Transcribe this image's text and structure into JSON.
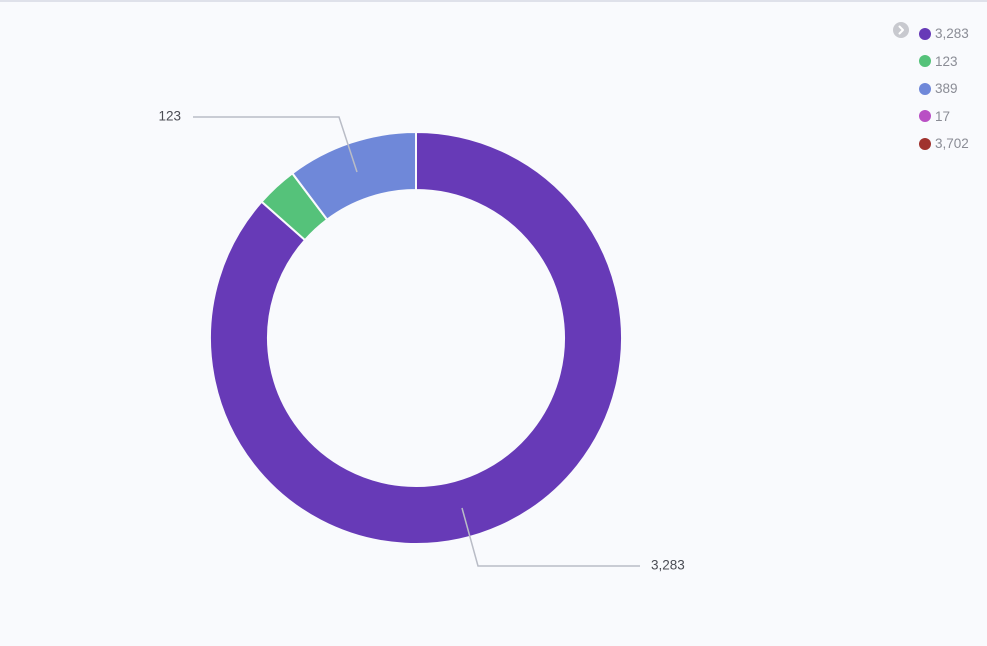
{
  "chart_data": {
    "type": "pie",
    "variant": "donut",
    "categories": [
      "3,283",
      "123",
      "389",
      "17",
      "3,702"
    ],
    "values": [
      3283,
      123,
      389,
      17,
      3702
    ],
    "colors": [
      "#673ab7",
      "#55c27a",
      "#6f88d9",
      "#b94fc4",
      "#a0322e"
    ],
    "visible": [
      true,
      true,
      true,
      false,
      false
    ],
    "callout_labels": [
      "3,283",
      "123"
    ],
    "legend_position": "top-right"
  },
  "legend": {
    "toggle_icon": "chevron-right-icon"
  }
}
